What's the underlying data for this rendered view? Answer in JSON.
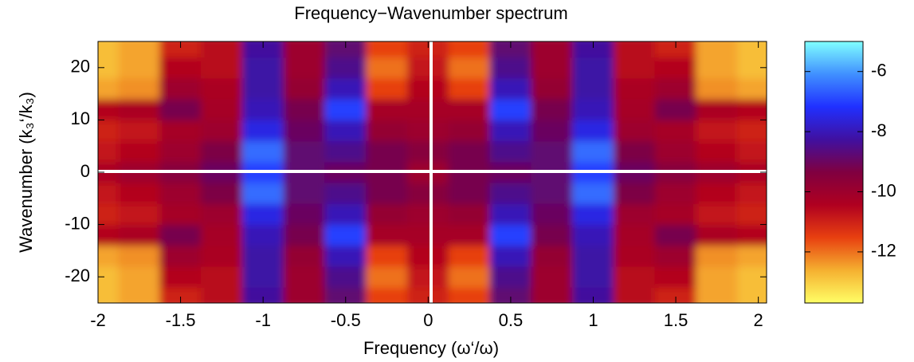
{
  "chart_data": {
    "type": "contour",
    "title": "Frequency−Wavenumber spectrum",
    "x_label": "Frequency (ω‘/ω)",
    "y_label": "Wavenumber (k₃‘/k₃)",
    "x": [
      -2,
      -1.75,
      -1.5,
      -1.25,
      -1,
      -0.75,
      -0.5,
      -0.25,
      0,
      0.25,
      0.5,
      0.75,
      1,
      1.25,
      1.5,
      1.75,
      2
    ],
    "y": [
      -24,
      -20,
      -16,
      -12,
      -8,
      -4,
      0,
      4,
      8,
      12,
      16,
      20,
      24
    ],
    "z": [
      [
        -12.8,
        -12.5,
        -11,
        -10.6,
        -8.3,
        -10,
        -8.8,
        -11.5,
        -11,
        -11.5,
        -8.8,
        -10,
        -8.3,
        -10.6,
        -11,
        -12.5,
        -12.8
      ],
      [
        -12.8,
        -12.5,
        -10.5,
        -10.6,
        -8.2,
        -10,
        -8.5,
        -12,
        -10.8,
        -12,
        -8.5,
        -10,
        -8.2,
        -10.6,
        -10.5,
        -12.5,
        -12.8
      ],
      [
        -12.5,
        -12.3,
        -10,
        -10.3,
        -8.2,
        -9.8,
        -8,
        -11.5,
        -10.5,
        -11.5,
        -8,
        -9.8,
        -8.2,
        -10.3,
        -10,
        -12.3,
        -12.5
      ],
      [
        -10.5,
        -10.3,
        -9.2,
        -10.2,
        -8,
        -9.2,
        -7,
        -10.2,
        -10.2,
        -10.2,
        -7,
        -9.2,
        -8,
        -10.2,
        -9.2,
        -10.3,
        -10.5
      ],
      [
        -11,
        -10.8,
        -10.2,
        -10,
        -7.5,
        -9,
        -8,
        -9.8,
        -10,
        -9.8,
        -8,
        -9,
        -7.5,
        -10,
        -10.2,
        -10.8,
        -11
      ],
      [
        -10.8,
        -10.5,
        -10,
        -9.3,
        -6.5,
        -8.8,
        -8.5,
        -9.2,
        -9.5,
        -9.2,
        -8.5,
        -8.8,
        -6.5,
        -9.3,
        -10,
        -10.5,
        -10.8
      ],
      [
        -10.3,
        -10,
        -9.5,
        -9,
        -7,
        -8.8,
        -9,
        -9.2,
        -10,
        -9.2,
        -9,
        -8.8,
        -7,
        -9,
        -9.5,
        -10,
        -10.3
      ],
      [
        -10.8,
        -10.5,
        -10,
        -9.3,
        -6.5,
        -8.8,
        -8.5,
        -9.2,
        -9.5,
        -9.2,
        -8.5,
        -8.8,
        -6.5,
        -9.3,
        -10,
        -10.5,
        -10.8
      ],
      [
        -11,
        -10.8,
        -10.2,
        -10,
        -7.5,
        -9,
        -8,
        -9.8,
        -10,
        -9.8,
        -8,
        -9,
        -7.5,
        -10,
        -10.2,
        -10.8,
        -11
      ],
      [
        -10.5,
        -10.3,
        -9.2,
        -10.2,
        -8,
        -9.2,
        -7,
        -10.2,
        -10.2,
        -10.2,
        -7,
        -9.2,
        -8,
        -10.2,
        -9.2,
        -10.3,
        -10.5
      ],
      [
        -12.5,
        -12.3,
        -10,
        -10.3,
        -8.2,
        -9.8,
        -8,
        -11.5,
        -10.5,
        -11.5,
        -8,
        -9.8,
        -8.2,
        -10.3,
        -10,
        -12.3,
        -12.5
      ],
      [
        -12.8,
        -12.5,
        -10.5,
        -10.6,
        -8.2,
        -10,
        -8.5,
        -12,
        -10.8,
        -12,
        -8.5,
        -10,
        -8.2,
        -10.6,
        -10.5,
        -12.5,
        -12.8
      ],
      [
        -12.8,
        -12.5,
        -11,
        -10.6,
        -8.3,
        -10,
        -8.8,
        -11.5,
        -11,
        -11.5,
        -8.8,
        -10,
        -8.3,
        -10.6,
        -11,
        -12.5,
        -12.8
      ]
    ],
    "xlim": [
      -2,
      2.05
    ],
    "ylim": [
      -25,
      25
    ],
    "xticks": [
      -2,
      -1.5,
      -1,
      -0.5,
      0,
      0.5,
      1,
      1.5,
      2
    ],
    "yticks": [
      -20,
      -10,
      0,
      10,
      20
    ],
    "clim": [
      -13.7,
      -5
    ],
    "cticks": [
      -12,
      -10,
      -8,
      -6
    ],
    "colormap": [
      "#ffff66",
      "#f5b030",
      "#e84010",
      "#b00020",
      "#800040",
      "#4010a0",
      "#2030ff",
      "#4090ff",
      "#80ffff"
    ]
  }
}
